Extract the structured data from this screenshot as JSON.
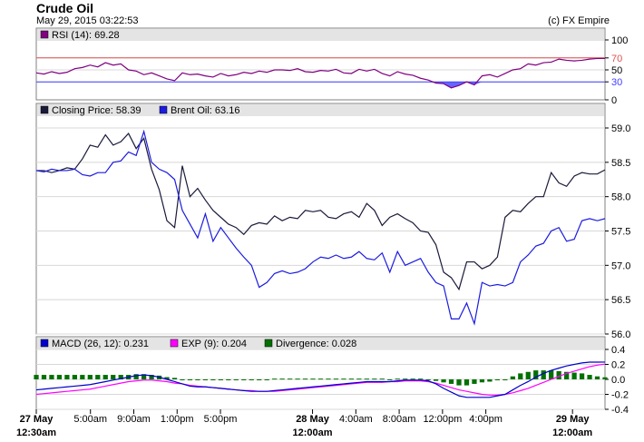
{
  "header": {
    "title": "Crude Oil",
    "timestamp": "May 29, 2015 03:22:53",
    "credit": "(c) FX Empire"
  },
  "colors": {
    "closing": "#1a1a3a",
    "brent": "#1c1ce0",
    "rsi": "#800080",
    "macd": "#0000cc",
    "exp": "#ff00ff",
    "divergence": "#007000",
    "rsi_upper": "#e05050",
    "rsi_lower": "#4040ff",
    "grid": "#d8d8d8",
    "legend_bg": "#e4e4e4",
    "panel_border": "#808080"
  },
  "chart_data": [
    {
      "panel": "rsi",
      "type": "line",
      "legend": "RSI (14): 69.28",
      "ylim": [
        0,
        100
      ],
      "yticks": [
        0,
        30,
        50,
        70,
        100
      ],
      "levels": [
        70,
        30
      ],
      "series": [
        {
          "values": [
            45,
            43,
            47,
            44,
            46,
            52,
            54,
            58,
            55,
            62,
            58,
            60,
            50,
            48,
            42,
            45,
            40,
            35,
            32,
            45,
            42,
            43,
            40,
            38,
            44,
            40,
            42,
            46,
            44,
            48,
            46,
            50,
            50,
            49,
            52,
            47,
            46,
            49,
            48,
            51,
            45,
            44,
            51,
            48,
            51,
            44,
            40,
            47,
            43,
            41,
            36,
            33,
            28,
            27,
            20,
            24,
            30,
            25,
            40,
            42,
            38,
            44,
            50,
            52,
            60,
            58,
            62,
            63,
            68,
            66,
            65,
            66,
            68,
            69,
            69
          ]
        }
      ]
    },
    {
      "panel": "price",
      "type": "line",
      "ylim": [
        56.0,
        59.0
      ],
      "yticks": [
        56.0,
        56.5,
        57.0,
        57.5,
        58.0,
        58.5,
        59.0
      ],
      "ytick_labels": [
        "56.0",
        "56.5",
        "57.0",
        "57.5",
        "58.0",
        "58.5",
        "59.0"
      ],
      "series": [
        {
          "name": "Closing Price: 58.39",
          "key": "closing",
          "values": [
            58.38,
            58.38,
            58.35,
            58.38,
            58.42,
            58.4,
            58.55,
            58.75,
            58.72,
            58.9,
            58.75,
            58.8,
            58.92,
            58.7,
            58.85,
            58.4,
            58.1,
            57.65,
            57.55,
            58.45,
            58.0,
            58.12,
            57.95,
            57.8,
            57.7,
            57.6,
            57.55,
            57.45,
            57.58,
            57.62,
            57.6,
            57.72,
            57.65,
            57.7,
            57.68,
            57.8,
            57.78,
            57.8,
            57.7,
            57.68,
            57.75,
            57.78,
            57.7,
            57.9,
            57.8,
            57.58,
            57.7,
            57.75,
            57.68,
            57.62,
            57.5,
            57.48,
            57.3,
            56.9,
            56.82,
            56.65,
            57.05,
            57.05,
            56.95,
            57.0,
            57.12,
            57.7,
            57.8,
            57.78,
            57.9,
            58.0,
            58.0,
            58.35,
            58.2,
            58.15,
            58.3,
            58.35,
            58.33,
            58.33,
            58.39
          ]
        },
        {
          "name": "Brent Oil: 63.16",
          "key": "brent",
          "values": [
            58.38,
            58.36,
            58.4,
            58.38,
            58.38,
            58.4,
            58.32,
            58.3,
            58.35,
            58.35,
            58.5,
            58.52,
            58.65,
            58.6,
            58.95,
            58.5,
            58.4,
            58.35,
            58.25,
            57.8,
            57.6,
            57.4,
            57.75,
            57.35,
            57.55,
            57.4,
            57.25,
            57.12,
            57.0,
            56.68,
            56.75,
            56.88,
            56.92,
            56.88,
            56.9,
            56.95,
            57.05,
            57.12,
            57.1,
            57.15,
            57.1,
            57.12,
            57.2,
            57.1,
            57.08,
            57.18,
            56.9,
            57.2,
            57.0,
            57.05,
            57.1,
            56.9,
            56.75,
            56.7,
            56.22,
            56.22,
            56.45,
            56.15,
            56.75,
            56.7,
            56.72,
            56.7,
            56.75,
            57.05,
            57.15,
            57.28,
            57.32,
            57.5,
            57.55,
            57.35,
            57.38,
            57.65,
            57.68,
            57.65,
            57.68
          ]
        }
      ]
    },
    {
      "panel": "macd",
      "type": "line+bar",
      "ylim": [
        -0.4,
        0.4
      ],
      "yticks": [
        -0.4,
        -0.2,
        0.0,
        0.2,
        0.4
      ],
      "ytick_labels": [
        "-0.4",
        "-0.2",
        "0.0",
        "0.2",
        "0.4"
      ],
      "macd_legend": "MACD (26, 12): 0.231",
      "exp_legend": "EXP (9): 0.204",
      "divergence_legend": "Divergence: 0.028",
      "macd": [
        -0.14,
        -0.13,
        -0.12,
        -0.11,
        -0.1,
        -0.09,
        -0.08,
        -0.07,
        -0.05,
        -0.03,
        -0.01,
        0.01,
        0.03,
        0.05,
        0.06,
        0.05,
        0.03,
        0.0,
        -0.03,
        -0.06,
        -0.09,
        -0.1,
        -0.1,
        -0.11,
        -0.12,
        -0.13,
        -0.14,
        -0.15,
        -0.16,
        -0.16,
        -0.16,
        -0.15,
        -0.14,
        -0.13,
        -0.12,
        -0.11,
        -0.1,
        -0.09,
        -0.08,
        -0.07,
        -0.06,
        -0.05,
        -0.04,
        -0.03,
        -0.03,
        -0.03,
        -0.03,
        -0.02,
        -0.01,
        -0.01,
        -0.01,
        -0.02,
        -0.06,
        -0.12,
        -0.17,
        -0.22,
        -0.24,
        -0.24,
        -0.24,
        -0.24,
        -0.22,
        -0.2,
        -0.14,
        -0.08,
        -0.03,
        0.03,
        0.08,
        0.12,
        0.15,
        0.18,
        0.2,
        0.22,
        0.23,
        0.23,
        0.231
      ],
      "exp": [
        -0.2,
        -0.19,
        -0.18,
        -0.17,
        -0.16,
        -0.15,
        -0.14,
        -0.13,
        -0.11,
        -0.09,
        -0.07,
        -0.05,
        -0.03,
        -0.02,
        -0.01,
        -0.01,
        -0.02,
        -0.03,
        -0.05,
        -0.06,
        -0.08,
        -0.09,
        -0.1,
        -0.11,
        -0.12,
        -0.13,
        -0.14,
        -0.15,
        -0.15,
        -0.16,
        -0.16,
        -0.16,
        -0.15,
        -0.14,
        -0.13,
        -0.12,
        -0.11,
        -0.1,
        -0.09,
        -0.08,
        -0.07,
        -0.06,
        -0.05,
        -0.04,
        -0.04,
        -0.04,
        -0.03,
        -0.03,
        -0.02,
        -0.02,
        -0.02,
        -0.03,
        -0.05,
        -0.08,
        -0.11,
        -0.14,
        -0.16,
        -0.18,
        -0.2,
        -0.21,
        -0.21,
        -0.2,
        -0.18,
        -0.15,
        -0.12,
        -0.08,
        -0.04,
        0.0,
        0.04,
        0.08,
        0.11,
        0.14,
        0.17,
        0.19,
        0.204
      ],
      "divergence": [
        0.06,
        0.06,
        0.06,
        0.06,
        0.06,
        0.06,
        0.06,
        0.06,
        0.06,
        0.06,
        0.06,
        0.06,
        0.06,
        0.07,
        0.07,
        0.06,
        0.05,
        0.03,
        0.02,
        0.0,
        -0.01,
        -0.01,
        0.0,
        0.0,
        0.0,
        0.0,
        0.0,
        0.0,
        0.0,
        0.0,
        0.0,
        0.01,
        0.01,
        0.01,
        0.01,
        0.01,
        0.01,
        0.01,
        0.01,
        0.01,
        0.01,
        0.01,
        0.01,
        0.01,
        0.01,
        0.01,
        0.0,
        0.01,
        0.01,
        0.01,
        0.01,
        0.0,
        -0.02,
        -0.04,
        -0.06,
        -0.08,
        -0.08,
        -0.06,
        -0.04,
        -0.03,
        -0.01,
        0.0,
        0.04,
        0.08,
        0.1,
        0.12,
        0.12,
        0.12,
        0.11,
        0.1,
        0.09,
        0.08,
        0.06,
        0.04,
        0.028
      ]
    }
  ],
  "x_axis": {
    "ticks": [
      {
        "pos": 0,
        "label": "27 May",
        "label2": "12:30am",
        "major": true
      },
      {
        "pos": 5,
        "label": "5:00am",
        "label2": "",
        "major": false
      },
      {
        "pos": 9,
        "label": "9:00am",
        "label2": "",
        "major": false
      },
      {
        "pos": 13,
        "label": "1:00pm",
        "label2": "",
        "major": false
      },
      {
        "pos": 17,
        "label": "5:00pm",
        "label2": "",
        "major": false
      },
      {
        "pos": 25.5,
        "label": "28 May",
        "label2": "12:00am",
        "major": true
      },
      {
        "pos": 29.5,
        "label": "4:00am",
        "label2": "",
        "major": false
      },
      {
        "pos": 33.5,
        "label": "8:00am",
        "label2": "",
        "major": false
      },
      {
        "pos": 37.5,
        "label": "12:00pm",
        "label2": "",
        "major": false
      },
      {
        "pos": 41.5,
        "label": "4:00pm",
        "label2": "",
        "major": false
      },
      {
        "pos": 49.5,
        "label": "29 May",
        "label2": "12:00am",
        "major": true
      }
    ],
    "xmax": 52.5
  }
}
